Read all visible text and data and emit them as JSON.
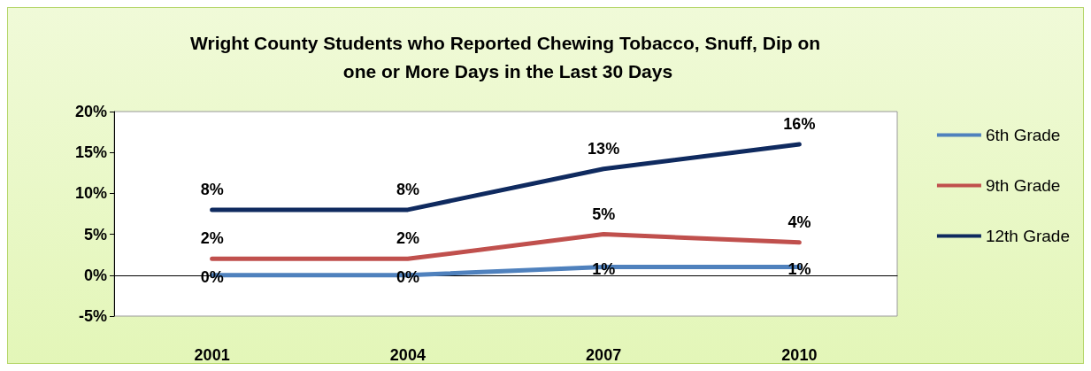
{
  "chart_data": {
    "type": "line",
    "title": "Wright County Students who Reported Chewing Tobacco, Snuff, Dip on one or More Days in the Last 30 Days",
    "categories": [
      "2001",
      "2004",
      "2007",
      "2010"
    ],
    "series": [
      {
        "name": "6th Grade",
        "color": "#4f81bd",
        "values": [
          0,
          0,
          1,
          1
        ],
        "value_labels": [
          "0%",
          "0%",
          "1%",
          "1%"
        ]
      },
      {
        "name": "9th Grade",
        "color": "#c0504d",
        "values": [
          2,
          2,
          5,
          4
        ],
        "value_labels": [
          "2%",
          "2%",
          "5%",
          "4%"
        ]
      },
      {
        "name": "12th Grade",
        "color": "#0f2a5f",
        "values": [
          8,
          8,
          13,
          16
        ],
        "value_labels": [
          "8%",
          "8%",
          "13%",
          "16%"
        ]
      }
    ],
    "ylim": [
      -5,
      20
    ],
    "yticks": [
      {
        "value": -5,
        "label": "-5%"
      },
      {
        "value": 0,
        "label": "0%"
      },
      {
        "value": 5,
        "label": "5%"
      },
      {
        "value": 10,
        "label": "10%"
      },
      {
        "value": 15,
        "label": "15%"
      },
      {
        "value": 20,
        "label": "20%"
      }
    ],
    "legend": "right",
    "marker": "none",
    "line_style": "solid"
  }
}
